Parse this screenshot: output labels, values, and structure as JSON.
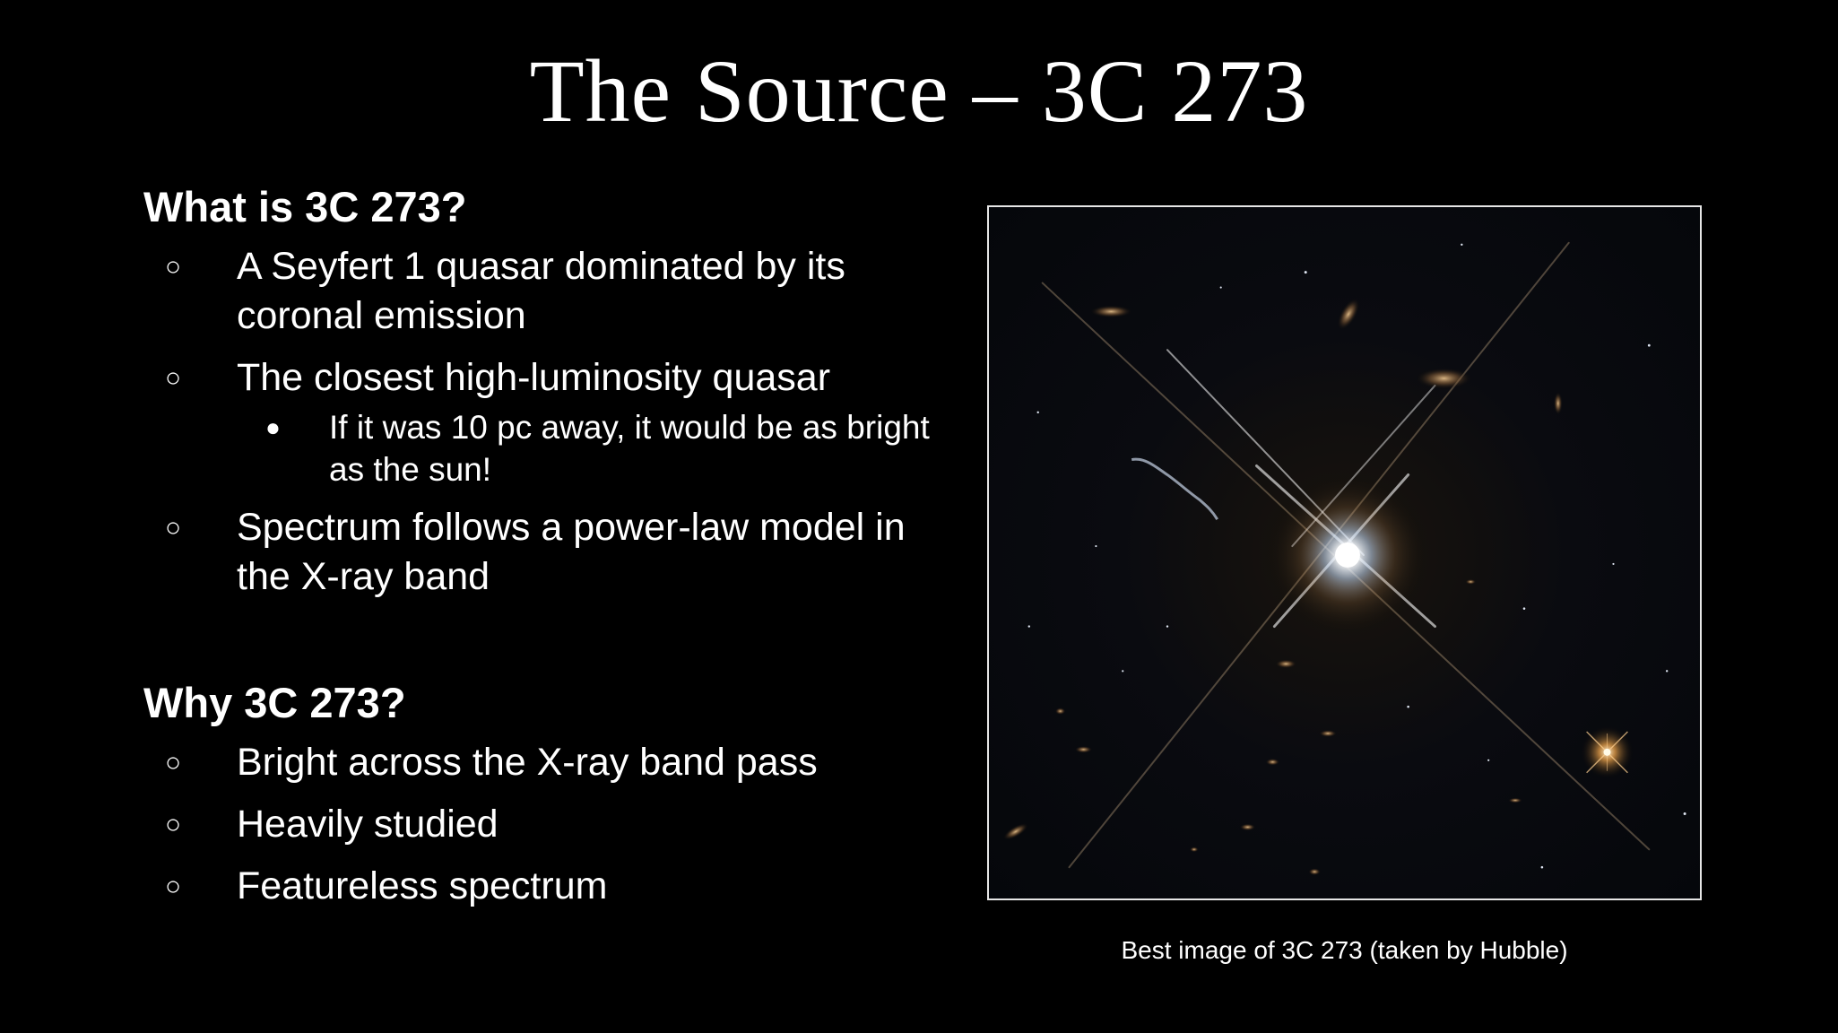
{
  "title": "The Source – 3C 273",
  "sections": [
    {
      "heading": "What is 3C 273?",
      "items": [
        {
          "text": "A Seyfert 1 quasar dominated by its coronal emission",
          "marker": "○"
        },
        {
          "text": "The closest high-luminosity quasar",
          "marker": "○",
          "sub_items": [
            {
              "text": "If it was 10 pc away, it would be as bright as the sun!",
              "marker": "●"
            }
          ]
        },
        {
          "text": "Spectrum follows a power-law model in the X-ray band",
          "marker": "○"
        }
      ]
    },
    {
      "heading": "Why 3C 273?",
      "items": [
        {
          "text": "Bright across the X-ray band pass",
          "marker": "○"
        },
        {
          "text": "Heavily studied",
          "marker": "○"
        },
        {
          "text": "Featureless spectrum",
          "marker": "○"
        }
      ]
    }
  ],
  "image": {
    "caption": "Best image of 3C 273 (taken by Hubble)"
  },
  "colors": {
    "background": "#000000",
    "text": "#ffffff",
    "frame": "#e6e6e6"
  }
}
